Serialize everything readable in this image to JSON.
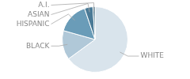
{
  "chart_data": {
    "type": "pie",
    "categories": [
      "WHITE",
      "BLACK",
      "HISPANIC",
      "ASIAN",
      "A.I."
    ],
    "values": [
      63,
      14,
      15,
      4,
      1
    ],
    "colors": [
      "#d9e4ec",
      "#b0c8d8",
      "#6a9cb8",
      "#4a7a96",
      "#2e5f78"
    ]
  }
}
